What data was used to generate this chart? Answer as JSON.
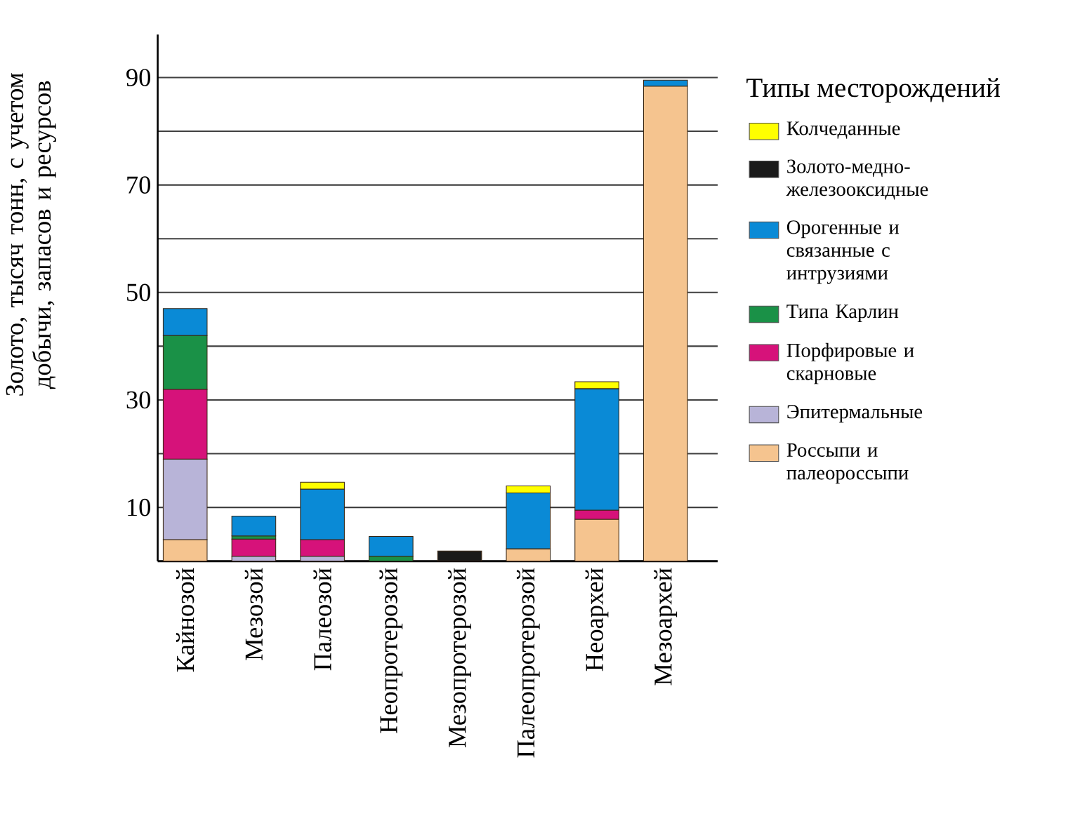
{
  "chart_data": {
    "type": "bar",
    "stacked": true,
    "ylabel": "Золото, тысяч тонн, с учетом добычи, запасов и ресурсов",
    "legend_title": "Типы месторождений",
    "legend": "right",
    "grid": "y",
    "categories": [
      "Кайнозой",
      "Мезозой",
      "Палеозой",
      "Неопротерозой",
      "Мезопротерозой",
      "Палеопротерозой",
      "Неоархей",
      "Мезоархей"
    ],
    "ylim": [
      0,
      98
    ],
    "yticks": [
      10,
      {
        "value": 20,
        "label": null
      },
      30,
      {
        "value": 40,
        "label": null
      },
      50,
      {
        "value": 60,
        "label": null
      },
      70,
      {
        "value": 80,
        "label": null
      },
      90
    ],
    "series": [
      {
        "name": "Россыпи и палеороссыпи",
        "color": "#f5c48f",
        "values": [
          4,
          null,
          null,
          null,
          null,
          2.3,
          7.8,
          88.4
        ]
      },
      {
        "name": "Эпитермальные",
        "color": "#b8b4d8",
        "values": [
          15,
          0.9,
          0.9,
          null,
          null,
          null,
          null,
          null
        ]
      },
      {
        "name": "Порфировые и скарновые",
        "color": "#d6127a",
        "values": [
          13,
          3.2,
          3.1,
          null,
          null,
          null,
          1.7,
          null
        ]
      },
      {
        "name": "Типа Карлин",
        "color": "#1a9147",
        "values": [
          10,
          0.6,
          null,
          0.9,
          null,
          null,
          null,
          null
        ]
      },
      {
        "name": "Орогенные и связанные с интрузиями",
        "color": "#0a8ad6",
        "values": [
          5,
          3.7,
          9.4,
          3.7,
          null,
          10.4,
          22.6,
          1.1
        ]
      },
      {
        "name": "Золото-медно-железооксидные",
        "color": "#1a1a1a",
        "values": [
          null,
          null,
          null,
          null,
          1.9,
          null,
          null,
          null
        ]
      },
      {
        "name": "Колчеданные",
        "color": "#ffff00",
        "values": [
          null,
          null,
          1.3,
          null,
          null,
          1.3,
          1.3,
          null
        ]
      }
    ]
  }
}
